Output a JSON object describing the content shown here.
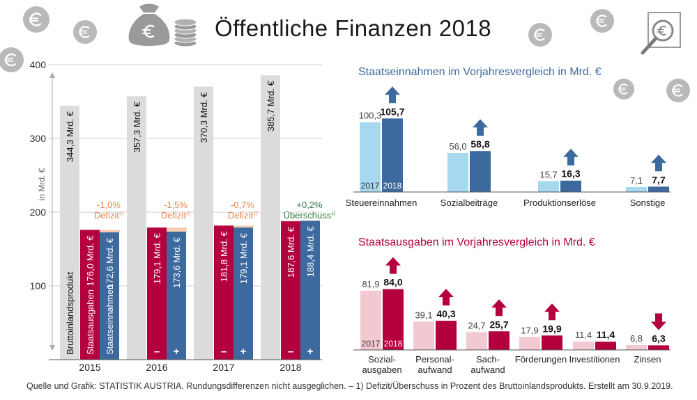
{
  "title": "Öffentliche Finanzen 2018",
  "source": "Quelle und Grafik: STATISTIK AUSTRIA. Rundungsdifferenzen nicht ausgeglichen. – 1) Defizit/Überschuss in Prozent des Bruttoinlandsprodukts. Erstellt am 30.9.2019.",
  "colors": {
    "gdp": "#dcdcdc",
    "expenditure": "#b5003f",
    "revenue": "#3d6a9e",
    "revenue_prev": "#a6d8f0",
    "expenditure_prev": "#f3c9d1",
    "deficit": "#e8834a",
    "surplus": "#2d7a45",
    "revenue_heading": "#3d6a9e",
    "expenditure_heading": "#b5003f",
    "coin": "#b9b9b9"
  },
  "icons": [
    "euro-coin-icon",
    "money-bag-icon",
    "coin-stack-icon",
    "magnifier-euro-icon"
  ],
  "chart_data": [
    {
      "type": "bar",
      "ylabel": "in Mrd. €",
      "ylim": [
        0,
        400
      ],
      "yticks": [
        "100",
        "200",
        "300",
        "400"
      ],
      "categories": [
        "2015",
        "2016",
        "2017",
        "2018"
      ],
      "series": [
        {
          "name": "Bruttoinlandsprodukt",
          "values": [
            344.3,
            357.3,
            370.3,
            385.7
          ],
          "labels": [
            "344,3 Mrd. €",
            "357,3 Mrd. €",
            "370,3 Mrd. €",
            "385,7 Mrd. €"
          ]
        },
        {
          "name": "Staatsausgaben",
          "values": [
            176.0,
            179.1,
            181.8,
            187.6
          ],
          "labels": [
            "176,0 Mrd. €",
            "179,1 Mrd. €",
            "181,8 Mrd. €",
            "187,6 Mrd. €"
          ]
        },
        {
          "name": "Staatseinnahmen",
          "values": [
            172.6,
            173.6,
            179.1,
            188.4
          ],
          "labels": [
            "172,6 Mrd. €",
            "173,6 Mrd. €",
            "179,1 Mrd. €",
            "188,4 Mrd. €"
          ]
        }
      ],
      "balance_pct": [
        "-1,0%",
        "-1,5%",
        "-0,7%",
        "+0,2%"
      ],
      "balance_label": [
        "Defizit",
        "Defizit",
        "Defizit",
        "Überschuss"
      ],
      "balance_note": "1)",
      "minus_sign": "–",
      "plus_sign": "+"
    },
    {
      "type": "bar",
      "title": "Staatseinnahmen im Vorjahresvergleich in Mrd. €",
      "categories": [
        "Steuereinnahmen",
        "Sozialbeiträge",
        "Produktionserlöse",
        "Sonstige"
      ],
      "series": [
        {
          "name": "2017",
          "values": [
            100.3,
            56.0,
            15.7,
            7.1
          ],
          "labels": [
            "100,3",
            "56,0",
            "15,7",
            "7,1"
          ]
        },
        {
          "name": "2018",
          "values": [
            105.7,
            58.8,
            16.3,
            7.7
          ],
          "labels": [
            "105,7",
            "58,8",
            "16,3",
            "7,7"
          ]
        }
      ],
      "trend": [
        "up",
        "up",
        "up",
        "up"
      ]
    },
    {
      "type": "bar",
      "title": "Staatsausgaben im Vorjahresvergleich in Mrd. €",
      "categories": [
        [
          "Sozial-",
          "ausgaben"
        ],
        [
          "Personal-",
          "aufwand"
        ],
        [
          "Sach-",
          "aufwand"
        ],
        [
          "Förderungen"
        ],
        [
          "Investitionen"
        ],
        [
          "Zinsen"
        ]
      ],
      "series": [
        {
          "name": "2017",
          "values": [
            81.9,
            39.1,
            24.7,
            17.9,
            11.4,
            6.8
          ],
          "labels": [
            "81,9",
            "39,1",
            "24,7",
            "17,9",
            "11,4",
            "6,8"
          ]
        },
        {
          "name": "2018",
          "values": [
            84.0,
            40.3,
            25.7,
            19.9,
            11.4,
            6.3
          ],
          "labels": [
            "84,0",
            "40,3",
            "25,7",
            "19,9",
            "11,4",
            "6,3"
          ]
        }
      ],
      "trend": [
        "up",
        "up",
        "up",
        "up",
        "none",
        "down"
      ]
    }
  ]
}
